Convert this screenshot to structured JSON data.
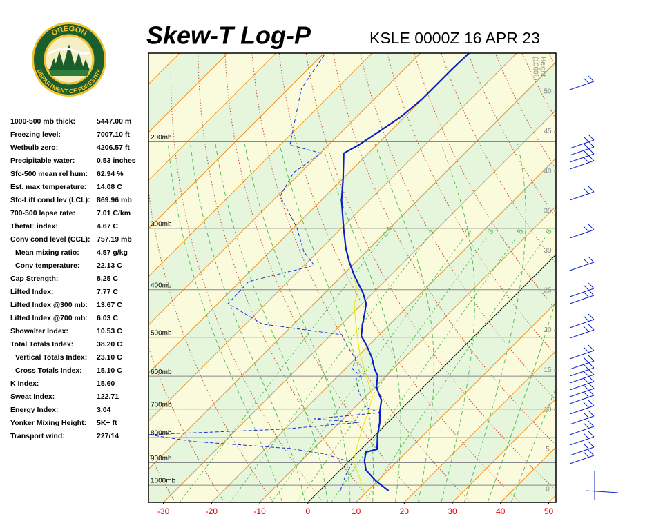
{
  "chart_data": {
    "type": "skewt",
    "title": "Skew-T Log-P",
    "subtitle": "KSLE 0000Z 16 APR 23",
    "xlim": [
      -33.1,
      51.5
    ],
    "xticks": [
      -30,
      -20,
      -10,
      0,
      10,
      20,
      30,
      40,
      50
    ],
    "ylim": [
      1084,
      132
    ],
    "log_y": true,
    "yticks": [
      {
        "value": 200,
        "label": "200mb"
      },
      {
        "value": 300,
        "label": "300mb"
      },
      {
        "value": 400,
        "label": "400mb"
      },
      {
        "value": 500,
        "label": "500mb"
      },
      {
        "value": 600,
        "label": "600mb"
      },
      {
        "value": 700,
        "label": "700mb"
      },
      {
        "value": 800,
        "label": "800mb"
      },
      {
        "value": 900,
        "label": "900mb"
      },
      {
        "value": 1000,
        "label": "1000mb"
      }
    ],
    "y2lim": [
      -1.65,
      54.86
    ],
    "y2ticks": [
      0,
      5,
      10,
      15,
      20,
      25,
      30,
      35,
      40,
      45,
      50
    ],
    "y2label": "Height",
    "y2unit": "(1000ft)",
    "mixing_ratio_labels": [
      0.4,
      1,
      2,
      3,
      5,
      8
    ],
    "series": [
      {
        "color": "#0a1fc8",
        "dash": false,
        "width": 2.2,
        "pressure": [
          1026,
          981,
          931,
          890,
          856,
          845,
          789,
          745,
          709,
          671,
          650,
          629,
          599,
          580,
          549,
          518,
          497,
          470,
          448,
          427,
          406,
          375,
          351,
          329,
          299,
          263,
          238,
          211,
          203,
          190,
          178,
          164,
          151,
          142,
          132
        ],
        "temperature": [
          14.3,
          9.7,
          5.3,
          3.0,
          1.6,
          3.3,
          0.4,
          -1.7,
          -3.9,
          -6.0,
          -8.0,
          -9.9,
          -11.8,
          -13.9,
          -16.9,
          -20.6,
          -23.5,
          -25.7,
          -27.4,
          -29.2,
          -32.1,
          -37.4,
          -41.4,
          -45.0,
          -49.7,
          -55.8,
          -59.9,
          -65.1,
          -63.7,
          -62.2,
          -60.8,
          -60.1,
          -60.1,
          -60.1,
          -59.9
        ]
      },
      {
        "color": "#1a2fd8",
        "dash": true,
        "width": 1,
        "pressure": [
          1026,
          959,
          899,
          864,
          842,
          815,
          789,
          769,
          745,
          733,
          712,
          694,
          650,
          609,
          599,
          580,
          553,
          527,
          494,
          470,
          427,
          385,
          357,
          335,
          299,
          258,
          231,
          211,
          203,
          156,
          149,
          132
        ],
        "temperature": [
          4.3,
          2.3,
          0.9,
          -6.6,
          -14.9,
          -36.4,
          -47.2,
          -20.4,
          -6.0,
          -16.1,
          -3.7,
          -7.7,
          -12.0,
          -15.6,
          -15.3,
          -18.5,
          -19.9,
          -23.5,
          -27.8,
          -46.5,
          -57.9,
          -58.2,
          -47.9,
          -52.9,
          -59.4,
          -69.4,
          -71.5,
          -69.8,
          -78.0,
          -87.3,
          -88.0,
          -89.7
        ]
      },
      {
        "color": "#e6e600",
        "dash": false,
        "width": 1,
        "pressure": [
          1026,
          893,
          829,
          764,
          716,
          661,
          599,
          535,
          470,
          427,
          406,
          375
        ],
        "temperature": [
          9.2,
          0.9,
          -1.6,
          -4.2,
          -6.0,
          -8.5,
          -14.2,
          -20.6,
          -27.1,
          -31.7,
          -33.1,
          -37.6
        ]
      }
    ]
  },
  "logo": {
    "top": "OREGON",
    "bottom": "DEPARTMENT OF FORESTRY"
  },
  "stats": [
    {
      "label": "1000-500 mb thick:",
      "value": "5447.00 m",
      "indent": false
    },
    {
      "label": "Freezing level:",
      "value": "7007.10 ft",
      "indent": false
    },
    {
      "label": "Wetbulb zero:",
      "value": "4206.57 ft",
      "indent": false
    },
    {
      "label": "Precipitable water:",
      "value": "0.53 inches",
      "indent": false
    },
    {
      "label": "Sfc-500 mean rel hum:",
      "value": "62.94 %",
      "indent": false
    },
    {
      "label": "Est. max temperature:",
      "value": "14.08 C",
      "indent": false
    },
    {
      "label": "Sfc-Lift cond lev (LCL):",
      "value": "869.96 mb",
      "indent": false
    },
    {
      "label": "700-500 lapse rate:",
      "value": "7.01 C/km",
      "indent": false
    },
    {
      "label": "ThetaE index:",
      "value": "4.67 C",
      "indent": false
    },
    {
      "label": "Conv cond level (CCL):",
      "value": "757.19 mb",
      "indent": false
    },
    {
      "label": "Mean mixing ratio:",
      "value": "4.57 g/kg",
      "indent": true
    },
    {
      "label": "Conv temperature:",
      "value": "22.13 C",
      "indent": true
    },
    {
      "label": "Cap Strength:",
      "value": "8.25 C",
      "indent": false
    },
    {
      "label": "Lifted Index:",
      "value": "7.77 C",
      "indent": false
    },
    {
      "label": "Lifted Index @300 mb:",
      "value": "13.67 C",
      "indent": false
    },
    {
      "label": "Lifted Index @700 mb:",
      "value": "6.03 C",
      "indent": false
    },
    {
      "label": "Showalter Index:",
      "value": "10.53 C",
      "indent": false
    },
    {
      "label": "Total Totals Index:",
      "value": "38.20 C",
      "indent": false
    },
    {
      "label": "Vertical Totals Index:",
      "value": "23.10 C",
      "indent": true
    },
    {
      "label": "Cross Totals Index:",
      "value": "15.10 C",
      "indent": true
    },
    {
      "label": "K Index:",
      "value": "15.60",
      "indent": false
    },
    {
      "label": "Sweat Index:",
      "value": "122.71",
      "indent": false
    },
    {
      "label": "Energy Index:",
      "value": "3.04",
      "indent": false
    },
    {
      "label": "Yonker Mixing Height:",
      "value": "5K+ ft",
      "indent": false
    },
    {
      "label": "Transport wind:",
      "value": "227/14",
      "indent": false
    }
  ]
}
